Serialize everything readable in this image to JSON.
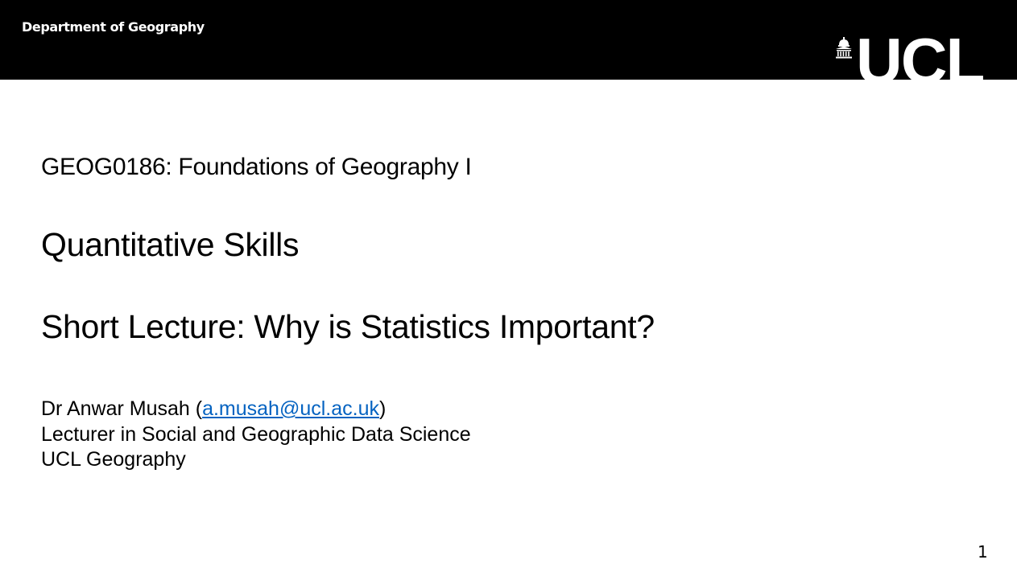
{
  "header": {
    "department": "Department of Geography",
    "logo_text": "UCL",
    "logo_icon": "portico-icon",
    "background_color": "#000000",
    "text_color": "#ffffff"
  },
  "content": {
    "course_code": "GEOG0186: Foundations of Geography I",
    "module_title": "Quantitative Skills",
    "lecture_title": "Short Lecture: Why is Statistics Important?",
    "author": {
      "name_prefix": "Dr Anwar Musah (",
      "email": "a.musah@ucl.ac.uk",
      "name_suffix": ")",
      "role": "Lecturer in Social and Geographic Data Science",
      "department": "UCL Geography"
    },
    "link_color": "#0563c1"
  },
  "footer": {
    "slide_number": "1"
  }
}
